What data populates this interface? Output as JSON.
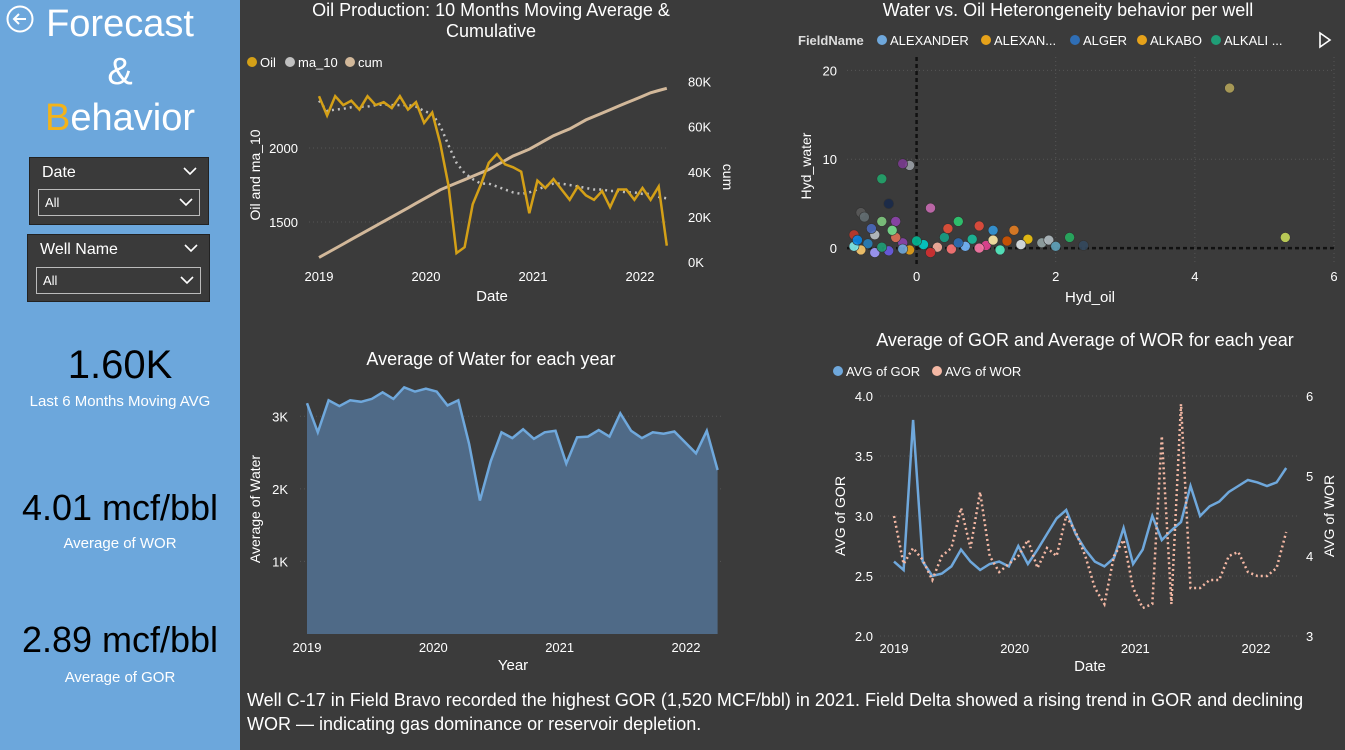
{
  "sidebar": {
    "title_line1": "Forecast",
    "title_line2": "&",
    "title_line3_accent": "B",
    "title_line3_rest": "ehavior",
    "date_slicer": {
      "label": "Date",
      "value": "All"
    },
    "well_slicer": {
      "label": "Well Name",
      "value": "All"
    },
    "kpis": [
      {
        "value": "1.60K",
        "label": "Last 6 Months Moving AVG"
      },
      {
        "value": "4.01 mcf/bbl",
        "label": "Average of WOR"
      },
      {
        "value": "2.89 mcf/bbl",
        "label": "Average of GOR"
      }
    ]
  },
  "footer_text": "Well C-17 in Field Bravo recorded the highest GOR (1,520 MCF/bbl) in 2021. Field Delta showed a rising trend in GOR and declining WOR — indicating gas dominance or reservoir depletion.",
  "colors": {
    "sidebar": "#6ca7dc",
    "accent": "#f3b31a",
    "oil": "#d4a017",
    "ma10": "#c0c0c0",
    "cum": "#d2b89a",
    "water": "#6fa8dc",
    "gor": "#6fa8dc",
    "wor": "#f4b8a4"
  },
  "chart_data": [
    {
      "type": "line",
      "title_l1": "Oil Production: 10 Months Moving Average &",
      "title_l2": "Cumulative",
      "legend": [
        "Oil",
        "ma_10",
        "cum"
      ],
      "xlabel": "Date",
      "ylabel_left": "Oil and ma_10",
      "ylabel_right": "cum",
      "xticks": [
        "2019",
        "2020",
        "2021",
        "2022"
      ],
      "yticks_left": [
        "1500",
        "2000"
      ],
      "yticks_right": [
        "0K",
        "20K",
        "40K",
        "60K",
        "80K"
      ],
      "x_start": 2019.0,
      "x_end": 2022.25,
      "ylim_left": [
        1230,
        2480
      ],
      "ylim_right": [
        0,
        82000
      ],
      "series": [
        {
          "name": "Oil",
          "values": [
            2350,
            2220,
            2350,
            2290,
            2320,
            2260,
            2350,
            2290,
            2310,
            2270,
            2350,
            2260,
            2310,
            2170,
            2240,
            2030,
            1750,
            1290,
            1330,
            1620,
            1750,
            1900,
            1960,
            1890,
            1870,
            1840,
            1560,
            1780,
            1730,
            1790,
            1720,
            1650,
            1740,
            1680,
            1650,
            1710,
            1600,
            1720,
            1720,
            1650,
            1730,
            1650,
            1740,
            1340
          ]
        },
        {
          "name": "ma_10",
          "values": [
            2320,
            2250,
            2260,
            2265,
            2275,
            2280,
            2280,
            2290,
            2295,
            2290,
            2290,
            2290,
            2280,
            2250,
            2230,
            2150,
            2020,
            1900,
            1830,
            1790,
            1760,
            1760,
            1740,
            1720,
            1700,
            1690,
            1700,
            1720,
            1740,
            1760,
            1760,
            1750,
            1740,
            1730,
            1720,
            1720,
            1710,
            1710,
            1700,
            1700,
            1690,
            1690,
            1670,
            1660
          ]
        },
        {
          "name": "cum",
          "values": [
            2000,
            4000,
            6000,
            8000,
            10000,
            12000,
            14000,
            16000,
            18000,
            20000,
            22000,
            24000,
            26000,
            28000,
            30000,
            32000,
            33500,
            35000,
            36500,
            38000,
            39500,
            41000,
            43000,
            45000,
            47000,
            48500,
            50000,
            52000,
            54000,
            56000,
            57500,
            59000,
            61000,
            63000,
            64500,
            66000,
            67500,
            69000,
            70500,
            72000,
            73500,
            75000,
            76000,
            77000
          ]
        }
      ]
    },
    {
      "type": "scatter",
      "title": "Water vs. Oil Heterongeneity behavior per well",
      "legend_title": "FieldName",
      "legend": [
        {
          "name": "ALEXANDER",
          "color": "#6fa8dc"
        },
        {
          "name": "ALEXAN...",
          "color": "#e6a21a"
        },
        {
          "name": "ALGER",
          "color": "#2f6eb5"
        },
        {
          "name": "ALKABO",
          "color": "#e6a21a"
        },
        {
          "name": "ALKALI ...",
          "color": "#1f9e77"
        }
      ],
      "xlabel": "Hyd_oil",
      "ylabel": "Hyd_water",
      "xticks": [
        "0",
        "2",
        "4",
        "6"
      ],
      "yticks": [
        "0",
        "10",
        "20"
      ],
      "xlim": [
        -1.0,
        6.0
      ],
      "ylim": [
        -1.9,
        21.5
      ],
      "points": [
        [
          4.5,
          18,
          "#b3a35a"
        ],
        [
          5.3,
          1.2,
          "#c7d85a"
        ],
        [
          -0.1,
          9.3,
          "#9aa0a6"
        ],
        [
          -0.2,
          9.5,
          "#7a3b8f"
        ],
        [
          -0.5,
          7.8,
          "#22a56b"
        ],
        [
          -0.4,
          5,
          "#1a2a4a"
        ],
        [
          0.2,
          4.5,
          "#c96bb2"
        ],
        [
          -0.8,
          4,
          "#5a5a5a"
        ],
        [
          -0.5,
          3,
          "#7fc97f"
        ],
        [
          -0.3,
          3,
          "#8e44ad"
        ],
        [
          0.6,
          3,
          "#2ecc71"
        ],
        [
          1.1,
          2,
          "#3498db"
        ],
        [
          0.9,
          2.5,
          "#e74c3c"
        ],
        [
          1.4,
          2,
          "#e67e22"
        ],
        [
          2.2,
          1.2,
          "#27ae60"
        ],
        [
          2.4,
          0.3,
          "#34495e"
        ],
        [
          1.6,
          1,
          "#f1c40f"
        ],
        [
          1.8,
          0.6,
          "#95a5a6"
        ],
        [
          1.3,
          0.8,
          "#d35400"
        ],
        [
          0.4,
          1.2,
          "#16a085"
        ],
        [
          -0.6,
          1.5,
          "#bdc3c7"
        ],
        [
          -0.9,
          1.5,
          "#c0392b"
        ],
        [
          -0.7,
          0.5,
          "#2980b9"
        ],
        [
          -0.2,
          0.6,
          "#8e44ad"
        ],
        [
          0.8,
          1,
          "#1abc9c"
        ],
        [
          1.0,
          0.3,
          "#e84393"
        ],
        [
          0.1,
          0.4,
          "#00cec9"
        ],
        [
          -0.4,
          -0.3,
          "#6c5ce7"
        ],
        [
          -0.8,
          -0.2,
          "#fdcb6e"
        ],
        [
          0.5,
          -0.1,
          "#ff7675"
        ],
        [
          1.2,
          -0.2,
          "#55efc4"
        ],
        [
          -0.6,
          -0.5,
          "#a29bfe"
        ],
        [
          0.3,
          0.1,
          "#fab1a0"
        ],
        [
          -0.9,
          0.2,
          "#81ecec"
        ],
        [
          0.7,
          0.2,
          "#74b9ff"
        ],
        [
          1.5,
          0.4,
          "#dfe6e9"
        ],
        [
          -0.3,
          1.2,
          "#e17055"
        ],
        [
          0.0,
          0.8,
          "#00b894"
        ],
        [
          -0.75,
          3.5,
          "#636e72"
        ],
        [
          -0.85,
          0.9,
          "#0984e3"
        ],
        [
          0.2,
          -0.5,
          "#d63031"
        ],
        [
          1.9,
          0.9,
          "#b2bec3"
        ],
        [
          -0.1,
          -0.2,
          "#e6a21a"
        ],
        [
          0.6,
          0.6,
          "#2f6eb5"
        ],
        [
          -0.5,
          0.1,
          "#1f9e77"
        ],
        [
          -0.2,
          -0.1,
          "#6fa8dc"
        ],
        [
          0.9,
          0.0,
          "#fd79a8"
        ],
        [
          1.1,
          0.9,
          "#ffeaa7"
        ],
        [
          -0.65,
          2.2,
          "#4a69bd"
        ],
        [
          -0.35,
          2,
          "#78e08f"
        ],
        [
          0.45,
          2.2,
          "#e55039"
        ],
        [
          2.0,
          0.2,
          "#60a3bc"
        ]
      ]
    },
    {
      "type": "area",
      "title": "Average of Water for each year",
      "xlabel": "Year",
      "ylabel": "Average of Water",
      "xticks": [
        "2019",
        "2020",
        "2021",
        "2022"
      ],
      "yticks": [
        "1K",
        "2K",
        "3K"
      ],
      "x_start": 2019.0,
      "x_end": 2022.25,
      "ylim": [
        0,
        3500
      ],
      "values": [
        3180,
        2780,
        3220,
        3140,
        3220,
        3200,
        3240,
        3330,
        3240,
        3400,
        3340,
        3380,
        3340,
        3150,
        3220,
        2620,
        1840,
        2380,
        2780,
        2700,
        2820,
        2690,
        2780,
        2800,
        2350,
        2710,
        2720,
        2810,
        2720,
        3040,
        2800,
        2700,
        2780,
        2760,
        2790,
        2640,
        2490,
        2800,
        2260
      ]
    },
    {
      "type": "line",
      "title": "Average of GOR and Average of WOR for each year",
      "legend": [
        "AVG of GOR",
        "AVG of WOR"
      ],
      "xlabel": "Date",
      "ylabel_left": "AVG of GOR",
      "ylabel_right": "AVG of WOR",
      "xticks": [
        "2019",
        "2020",
        "2021",
        "2022"
      ],
      "yticks_left": [
        "2.0",
        "2.5",
        "3.0",
        "3.5",
        "4.0"
      ],
      "yticks_right": [
        "3",
        "4",
        "5",
        "6"
      ],
      "x_start": 2019.0,
      "x_end": 2022.25,
      "ylim_left": [
        2.0,
        4.0
      ],
      "ylim_right": [
        3.0,
        6.0
      ],
      "series": [
        {
          "name": "AVG of GOR",
          "values": [
            2.62,
            2.55,
            3.8,
            2.62,
            2.5,
            2.52,
            2.58,
            2.72,
            2.62,
            2.55,
            2.6,
            2.62,
            2.58,
            2.75,
            2.6,
            2.72,
            2.85,
            2.98,
            3.05,
            2.85,
            2.72,
            2.62,
            2.58,
            2.65,
            2.9,
            2.6,
            2.72,
            3.0,
            2.8,
            2.88,
            2.95,
            3.25,
            3.0,
            3.08,
            3.12,
            3.2,
            3.25,
            3.3,
            3.28,
            3.25,
            3.28,
            3.4
          ]
        },
        {
          "name": "AVG of WOR",
          "values": [
            4.5,
            3.9,
            4.1,
            3.95,
            3.7,
            4.0,
            4.1,
            4.6,
            4.1,
            4.8,
            4.0,
            3.8,
            3.9,
            4.0,
            4.2,
            3.85,
            4.1,
            4.0,
            4.5,
            4.3,
            4.0,
            3.6,
            3.4,
            4.0,
            4.2,
            3.6,
            3.35,
            3.4,
            5.5,
            3.4,
            5.9,
            3.6,
            3.6,
            3.7,
            3.7,
            4.0,
            4.05,
            3.8,
            3.75,
            3.75,
            3.85,
            4.3
          ]
        }
      ]
    }
  ]
}
